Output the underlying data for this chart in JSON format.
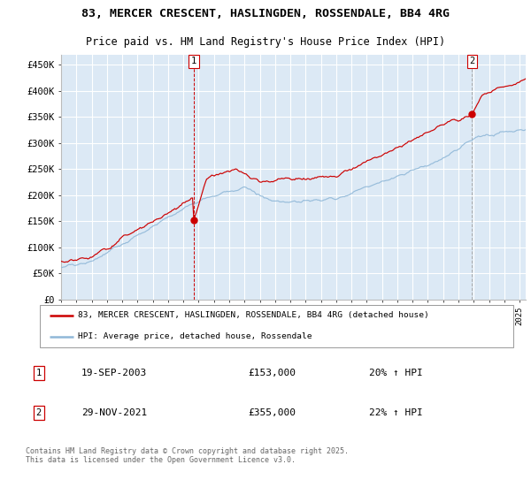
{
  "title_line1": "83, MERCER CRESCENT, HASLINGDEN, ROSSENDALE, BB4 4RG",
  "title_line2": "Price paid vs. HM Land Registry's House Price Index (HPI)",
  "legend_label1": "83, MERCER CRESCENT, HASLINGDEN, ROSSENDALE, BB4 4RG (detached house)",
  "legend_label2": "HPI: Average price, detached house, Rossendale",
  "footnote": "Contains HM Land Registry data © Crown copyright and database right 2025.\nThis data is licensed under the Open Government Licence v3.0.",
  "annotation1": {
    "label": "1",
    "date": "19-SEP-2003",
    "price": "£153,000",
    "pct": "20% ↑ HPI"
  },
  "annotation2": {
    "label": "2",
    "date": "29-NOV-2021",
    "price": "£355,000",
    "pct": "22% ↑ HPI"
  },
  "ylabel_ticks": [
    "£0",
    "£50K",
    "£100K",
    "£150K",
    "£200K",
    "£250K",
    "£300K",
    "£350K",
    "£400K",
    "£450K"
  ],
  "ytick_vals": [
    0,
    50000,
    100000,
    150000,
    200000,
    250000,
    300000,
    350000,
    400000,
    450000
  ],
  "ylim": [
    0,
    470000
  ],
  "background_color": "#dce9f5",
  "line_color_red": "#cc0000",
  "line_color_blue": "#90b8d8",
  "grid_color": "#ffffff",
  "vline1_color": "#cc0000",
  "vline2_color": "#aaaaaa",
  "x_start_year": 1995,
  "x_end_year": 2025
}
